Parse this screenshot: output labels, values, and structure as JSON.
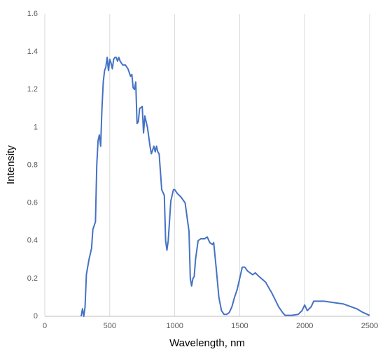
{
  "chart_data": {
    "type": "line",
    "xlabel": "Wavelength, nm",
    "ylabel": "Intensity",
    "x": [
      280,
      290,
      300,
      310,
      320,
      340,
      360,
      370,
      390,
      400,
      410,
      420,
      430,
      440,
      450,
      460,
      470,
      480,
      490,
      500,
      510,
      520,
      530,
      540,
      550,
      560,
      570,
      580,
      600,
      620,
      640,
      660,
      670,
      680,
      690,
      700,
      710,
      720,
      730,
      750,
      760,
      770,
      790,
      800,
      810,
      820,
      840,
      850,
      860,
      870,
      880,
      900,
      920,
      930,
      940,
      950,
      970,
      990,
      1000,
      1020,
      1050,
      1080,
      1100,
      1110,
      1120,
      1130,
      1140,
      1150,
      1160,
      1180,
      1200,
      1230,
      1250,
      1270,
      1290,
      1300,
      1320,
      1340,
      1360,
      1380,
      1400,
      1420,
      1440,
      1460,
      1480,
      1500,
      1520,
      1540,
      1560,
      1600,
      1620,
      1650,
      1700,
      1750,
      1800,
      1830,
      1850,
      1900,
      1950,
      1980,
      2000,
      2020,
      2050,
      2070,
      2100,
      2150,
      2200,
      2300,
      2400,
      2450,
      2500
    ],
    "series": [
      {
        "name": "Intensity",
        "color": "#4472c4",
        "values": [
          0,
          0.04,
          0,
          0.05,
          0.22,
          0.3,
          0.36,
          0.46,
          0.5,
          0.8,
          0.93,
          0.96,
          0.9,
          1.1,
          1.24,
          1.3,
          1.32,
          1.37,
          1.3,
          1.36,
          1.34,
          1.31,
          1.36,
          1.37,
          1.37,
          1.35,
          1.37,
          1.35,
          1.33,
          1.33,
          1.31,
          1.27,
          1.28,
          1.21,
          1.2,
          1.24,
          1.02,
          1.03,
          1.1,
          1.11,
          0.97,
          1.06,
          1.0,
          0.95,
          0.9,
          0.86,
          0.9,
          0.87,
          0.9,
          0.87,
          0.86,
          0.67,
          0.64,
          0.4,
          0.35,
          0.4,
          0.61,
          0.67,
          0.67,
          0.65,
          0.63,
          0.6,
          0.5,
          0.45,
          0.2,
          0.16,
          0.2,
          0.21,
          0.3,
          0.4,
          0.41,
          0.41,
          0.42,
          0.39,
          0.38,
          0.39,
          0.25,
          0.1,
          0.03,
          0.01,
          0.01,
          0.02,
          0.05,
          0.1,
          0.14,
          0.2,
          0.26,
          0.26,
          0.24,
          0.22,
          0.23,
          0.21,
          0.18,
          0.12,
          0.05,
          0.02,
          0.005,
          0.005,
          0.01,
          0.03,
          0.06,
          0.03,
          0.05,
          0.08,
          0.08,
          0.08,
          0.075,
          0.065,
          0.04,
          0.02,
          0.005
        ]
      }
    ],
    "xlim": [
      0,
      2500
    ],
    "xticks": [
      0,
      500,
      1000,
      1500,
      2000,
      2500
    ],
    "ylim": [
      0,
      1.6
    ],
    "yticks": [
      0,
      0.2,
      0.4,
      0.6,
      0.8,
      1,
      1.2,
      1.4,
      1.6
    ],
    "grid": "x"
  }
}
